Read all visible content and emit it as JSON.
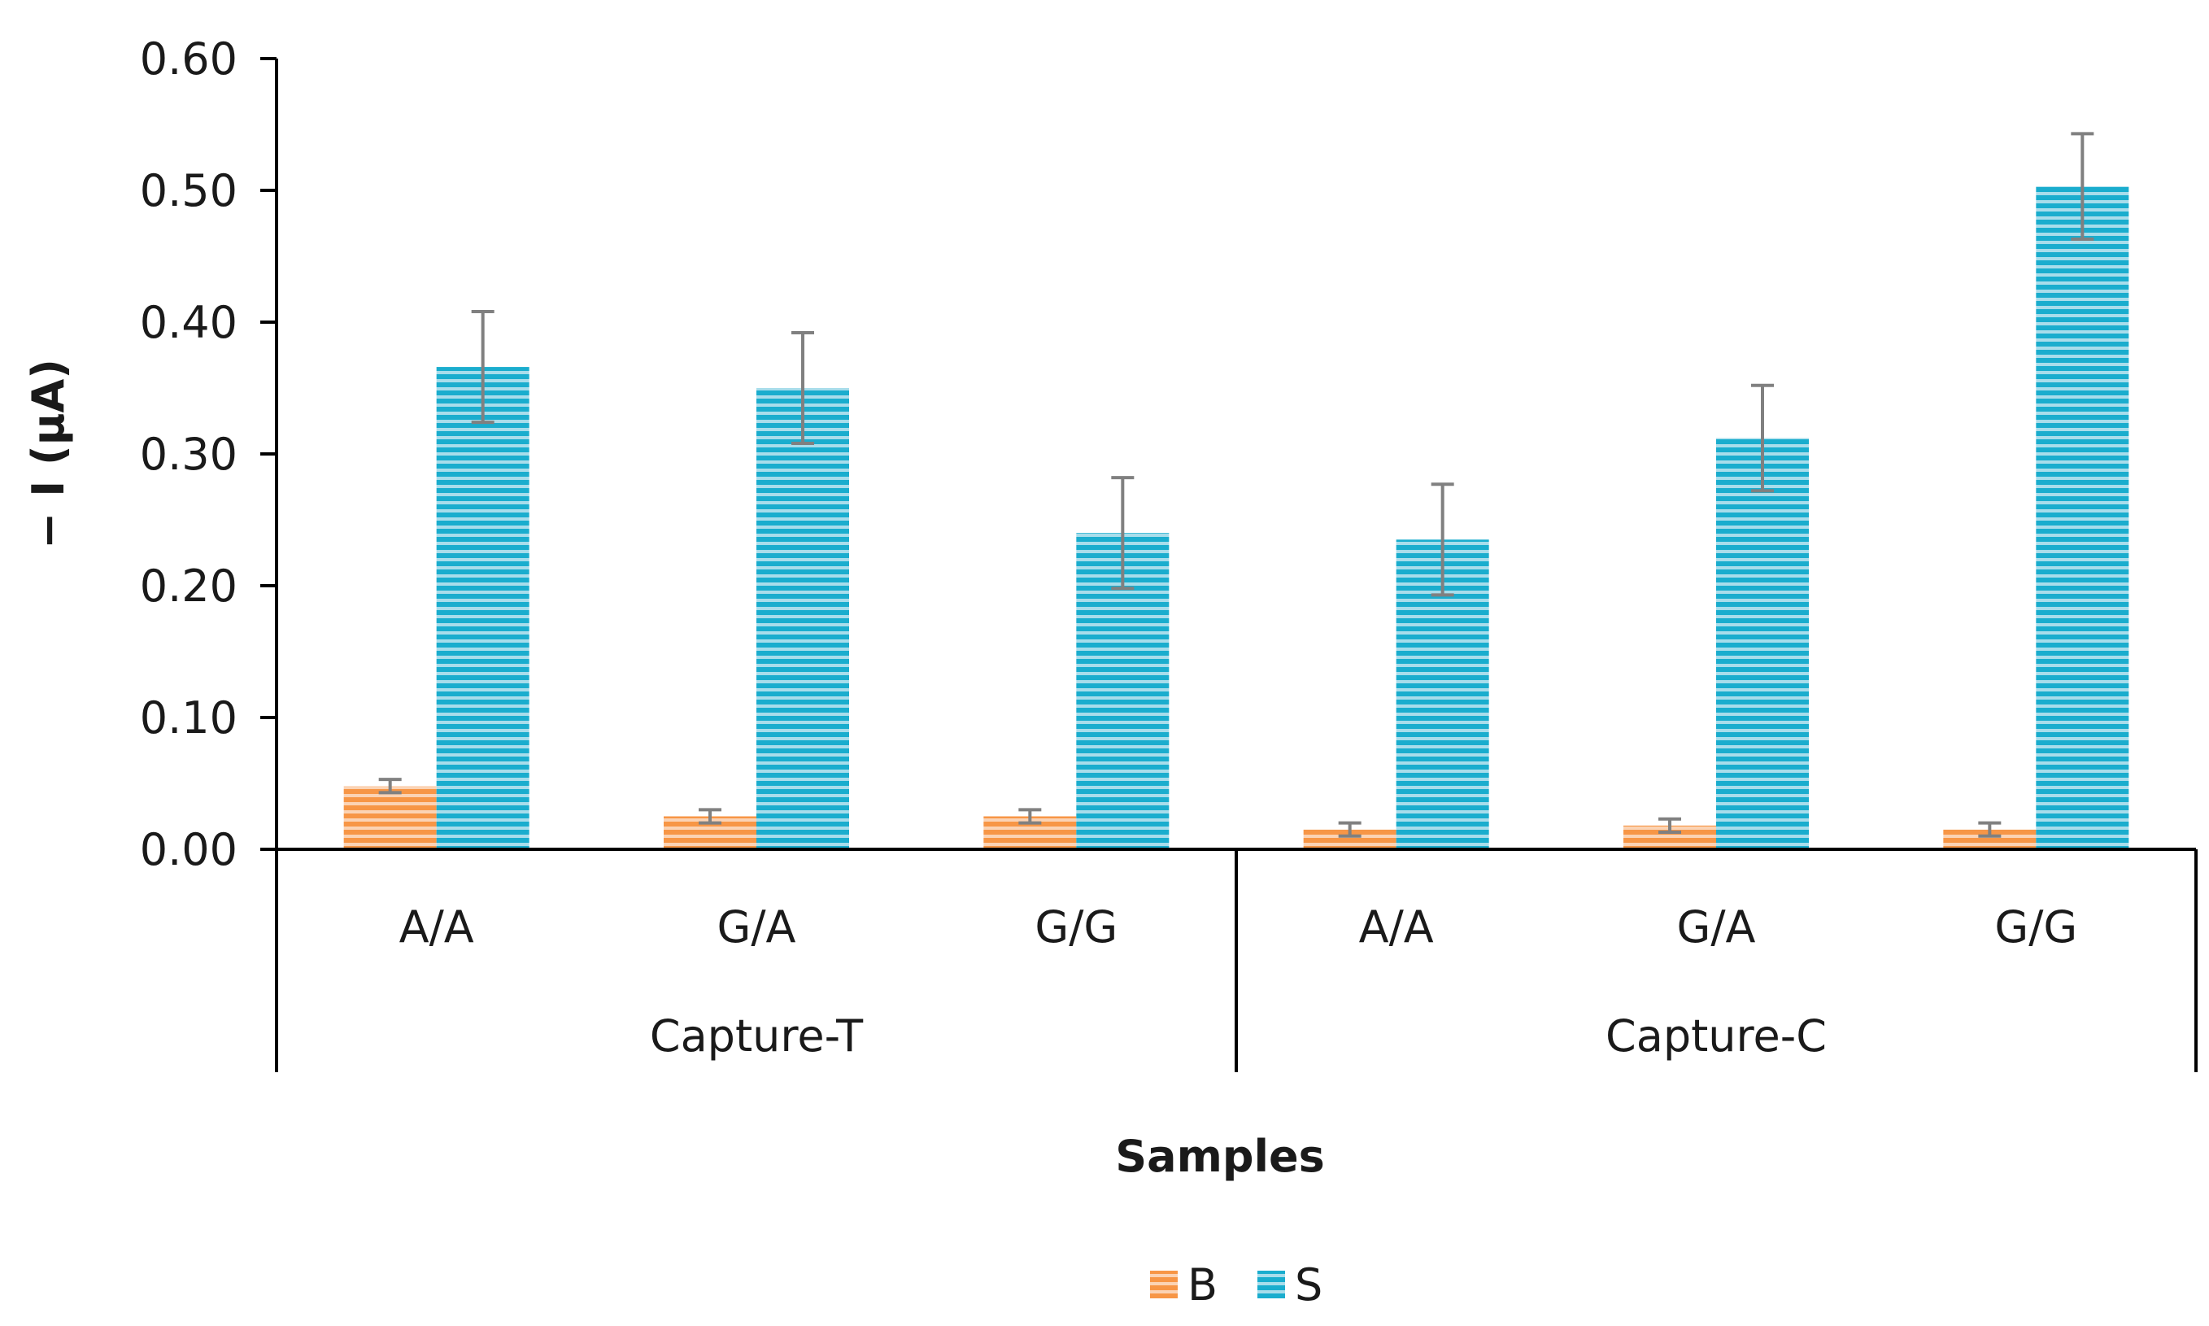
{
  "chart_data": {
    "type": "bar",
    "title": "",
    "xlabel": "Samples",
    "ylabel": "− I (µA)",
    "ylim": [
      0,
      0.6
    ],
    "ytick_step": 0.1,
    "ytick_labels": [
      "0.00",
      "0.10",
      "0.20",
      "0.30",
      "0.40",
      "0.50",
      "0.60"
    ],
    "groups": [
      {
        "name": "Capture-T",
        "categories": [
          "A/A",
          "G/A",
          "G/G"
        ]
      },
      {
        "name": "Capture-C",
        "categories": [
          "A/A",
          "G/A",
          "G/G"
        ]
      }
    ],
    "series": [
      {
        "name": "B",
        "color": "#F79646",
        "stripe_color": "#FBD3B4",
        "values": [
          0.048,
          0.025,
          0.025,
          0.015,
          0.018,
          0.015
        ],
        "errors": [
          0.005,
          0.005,
          0.005,
          0.005,
          0.005,
          0.005
        ]
      },
      {
        "name": "S",
        "color": "#1AADCE",
        "stripe_color": "#A8DDEB",
        "values": [
          0.366,
          0.35,
          0.24,
          0.235,
          0.312,
          0.503
        ],
        "errors": [
          0.042,
          0.042,
          0.042,
          0.042,
          0.04,
          0.04
        ]
      }
    ],
    "error_bar_color": "#808080",
    "legend_position": "bottom"
  }
}
